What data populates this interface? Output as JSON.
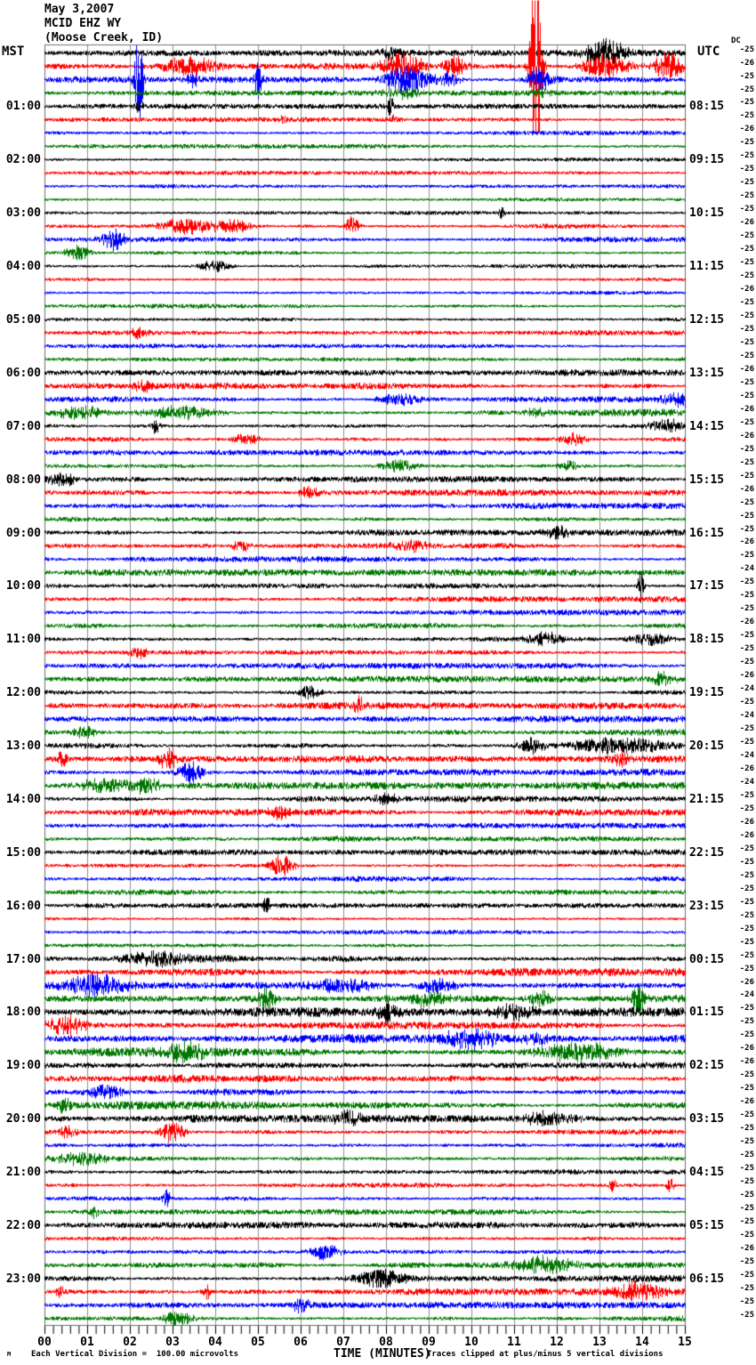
{
  "header": {
    "date": "May 3,2007",
    "station": "MCID EHZ WY",
    "location": "(Moose Creek, ID)"
  },
  "axes": {
    "left_label": "MST",
    "right_label": "UTC",
    "dc_label": "DC",
    "x_axis_title": "TIME (MINUTES)",
    "left_hours": [
      "01:00",
      "02:00",
      "03:00",
      "04:00",
      "05:00",
      "06:00",
      "07:00",
      "08:00",
      "09:00",
      "10:00",
      "11:00",
      "12:00",
      "13:00",
      "14:00",
      "15:00",
      "16:00",
      "17:00",
      "18:00",
      "19:00",
      "20:00",
      "21:00",
      "22:00",
      "23:00"
    ],
    "right_hours": [
      "08:15",
      "09:15",
      "10:15",
      "11:15",
      "12:15",
      "13:15",
      "14:15",
      "15:15",
      "16:15",
      "17:15",
      "18:15",
      "19:15",
      "20:15",
      "21:15",
      "22:15",
      "23:15",
      "00:15",
      "01:15",
      "02:15",
      "03:15",
      "04:15",
      "05:15",
      "06:15"
    ],
    "x_tick_labels": [
      "00",
      "01",
      "02",
      "03",
      "04",
      "05",
      "06",
      "07",
      "08",
      "09",
      "10",
      "11",
      "12",
      "13",
      "14",
      "15"
    ]
  },
  "footer": {
    "left": "Each Vertical Division =  100.00 microvolts",
    "right": "Traces clipped at plus/minus 5 vertical divisions",
    "watermark": "M"
  },
  "colors": {
    "trace_black": "#000000",
    "trace_red": "#ff0000",
    "trace_blue": "#0000ff",
    "trace_green": "#007700",
    "grid": "#909090",
    "border": "#707070",
    "background": "#ffffff",
    "text": "#000000"
  },
  "chart_data": {
    "type": "line",
    "subtype": "helicorder-seismogram",
    "title": "MCID EHZ WY (Moose Creek, ID) May 3,2007",
    "xlabel": "TIME (MINUTES)",
    "xlim": [
      0,
      15
    ],
    "rows": 96,
    "minutes_per_row": 15,
    "start_time_mst": "00:00",
    "start_time_utc": "07:15",
    "color_cycle": [
      "#000000",
      "#ff0000",
      "#0000ff",
      "#007700"
    ],
    "grid": true,
    "microvolts_per_division": 100,
    "clip_divisions": 5,
    "dc_offsets": [
      -25,
      -26,
      -25,
      -25,
      -25,
      -25,
      -26,
      -25,
      -25,
      -25,
      -25,
      -25,
      -25,
      -26,
      -25,
      -25,
      -25,
      -25,
      -26,
      -25,
      -25,
      -25,
      -25,
      -25,
      -26,
      -25,
      -25,
      -26,
      -25,
      -26,
      -25,
      -25,
      -25,
      -26,
      -25,
      -25,
      -25,
      -26,
      -25,
      -24,
      -25,
      -25,
      -25,
      -26,
      -25,
      -25,
      -25,
      -26,
      -24,
      -25,
      -24,
      -25,
      -25,
      -24,
      -26,
      -24,
      -25,
      -25,
      -26,
      -26,
      -25,
      -25,
      -25,
      -25,
      -25,
      -25,
      -25,
      -25,
      -25,
      -25,
      -26,
      -24,
      -25,
      -25,
      -25,
      -26,
      -26,
      -25,
      -25,
      -26,
      -25,
      -25,
      -25,
      -25,
      -25,
      -25,
      -25,
      -25,
      -25,
      -25,
      -26,
      -25,
      -25,
      -25,
      -25,
      -25
    ],
    "noise_amp": [
      2.2,
      3.2,
      2.8,
      1.8,
      1.8,
      1.8,
      1.6,
      1.6,
      1.4,
      1.5,
      1.4,
      1.5,
      1.6,
      2.0,
      1.9,
      1.8,
      1.8,
      1.7,
      1.7,
      1.7,
      1.9,
      1.9,
      1.8,
      1.9,
      2.4,
      2.4,
      2.4,
      2.6,
      2.3,
      2.4,
      2.2,
      2.4,
      2.3,
      2.3,
      2.2,
      2.2,
      2.3,
      2.2,
      2.2,
      2.3,
      2.3,
      2.2,
      2.2,
      2.2,
      2.4,
      2.3,
      2.2,
      2.3,
      2.5,
      2.5,
      2.4,
      2.5,
      2.7,
      2.7,
      2.5,
      2.6,
      2.3,
      2.3,
      2.2,
      2.2,
      2.0,
      2.1,
      2.0,
      2.0,
      1.7,
      1.7,
      1.7,
      1.8,
      3.0,
      2.8,
      3.4,
      3.4,
      3.3,
      3.2,
      3.2,
      3.3,
      3.0,
      3.0,
      2.9,
      2.9,
      2.6,
      2.6,
      2.5,
      2.6,
      1.9,
      2.0,
      1.9,
      2.0,
      2.3,
      2.3,
      2.3,
      2.3,
      2.5,
      2.4,
      2.3,
      2.3
    ],
    "events": [
      [
        0,
        13.1,
        13,
        0.35
      ],
      [
        0,
        8.1,
        5,
        0.2
      ],
      [
        1,
        3.4,
        9,
        0.5
      ],
      [
        1,
        8.4,
        13,
        0.35
      ],
      [
        1,
        9.6,
        11,
        0.2
      ],
      [
        1,
        11.5,
        110,
        0.09
      ],
      [
        1,
        13.1,
        11,
        0.4
      ],
      [
        1,
        14.6,
        13,
        0.25
      ],
      [
        2,
        2.2,
        45,
        0.07
      ],
      [
        2,
        3.45,
        8,
        0.1
      ],
      [
        2,
        5.0,
        17,
        0.06
      ],
      [
        2,
        8.5,
        13,
        0.4
      ],
      [
        2,
        9.5,
        7,
        0.15
      ],
      [
        2,
        11.6,
        11,
        0.2
      ],
      [
        3,
        8.4,
        5,
        0.3
      ],
      [
        3,
        11.6,
        4,
        0.15
      ],
      [
        4,
        8.1,
        10,
        0.05
      ],
      [
        4,
        2.2,
        4,
        0.1
      ],
      [
        5,
        5.6,
        5,
        0.06
      ],
      [
        5,
        8.2,
        4,
        0.08
      ],
      [
        12,
        10.7,
        5,
        0.06
      ],
      [
        13,
        3.3,
        8,
        0.45
      ],
      [
        13,
        4.4,
        7,
        0.3
      ],
      [
        13,
        7.2,
        9,
        0.12
      ],
      [
        14,
        1.6,
        11,
        0.2
      ],
      [
        15,
        0.75,
        7,
        0.2
      ],
      [
        16,
        4.0,
        5,
        0.3
      ],
      [
        21,
        2.2,
        5,
        0.15
      ],
      [
        25,
        2.3,
        6,
        0.15
      ],
      [
        26,
        8.3,
        6,
        0.35
      ],
      [
        26,
        14.9,
        6,
        0.3
      ],
      [
        27,
        0.8,
        6,
        0.4
      ],
      [
        27,
        3.2,
        6,
        0.6
      ],
      [
        27,
        11.5,
        5,
        0.15
      ],
      [
        28,
        2.6,
        7,
        0.07
      ],
      [
        28,
        14.6,
        6,
        0.3
      ],
      [
        29,
        4.7,
        6,
        0.2
      ],
      [
        29,
        12.4,
        6,
        0.2
      ],
      [
        31,
        8.3,
        6,
        0.3
      ],
      [
        31,
        12.3,
        5,
        0.15
      ],
      [
        32,
        0.4,
        6,
        0.3
      ],
      [
        33,
        6.2,
        6,
        0.15
      ],
      [
        36,
        12.0,
        5,
        0.2
      ],
      [
        37,
        4.6,
        6,
        0.15
      ],
      [
        37,
        8.6,
        5,
        0.3
      ],
      [
        40,
        13.96,
        16,
        0.05
      ],
      [
        44,
        11.7,
        6,
        0.3
      ],
      [
        44,
        14.2,
        6,
        0.35
      ],
      [
        45,
        2.2,
        6,
        0.15
      ],
      [
        47,
        14.5,
        6,
        0.2
      ],
      [
        48,
        6.2,
        6,
        0.2
      ],
      [
        49,
        7.35,
        10,
        0.08
      ],
      [
        51,
        0.9,
        6,
        0.2
      ],
      [
        52,
        11.4,
        8,
        0.2
      ],
      [
        52,
        13.5,
        8,
        0.9
      ],
      [
        53,
        0.4,
        8,
        0.08
      ],
      [
        53,
        2.9,
        10,
        0.15
      ],
      [
        53,
        13.5,
        7,
        0.15
      ],
      [
        54,
        3.4,
        11,
        0.2
      ],
      [
        55,
        1.5,
        7,
        0.5
      ],
      [
        55,
        2.4,
        7,
        0.2
      ],
      [
        56,
        8.0,
        6,
        0.2
      ],
      [
        57,
        5.5,
        6,
        0.2
      ],
      [
        61,
        5.55,
        10,
        0.2
      ],
      [
        64,
        5.2,
        8,
        0.08
      ],
      [
        68,
        2.5,
        6,
        0.5
      ],
      [
        70,
        1.2,
        10,
        0.5
      ],
      [
        70,
        7.0,
        7,
        0.5
      ],
      [
        70,
        9.2,
        7,
        0.3
      ],
      [
        71,
        5.2,
        12,
        0.15
      ],
      [
        71,
        9.0,
        8,
        0.3
      ],
      [
        71,
        11.6,
        8,
        0.2
      ],
      [
        71,
        13.9,
        12,
        0.12
      ],
      [
        72,
        8.0,
        8,
        0.15
      ],
      [
        72,
        11.0,
        6,
        0.3
      ],
      [
        73,
        0.5,
        9,
        0.3
      ],
      [
        74,
        10.0,
        9,
        0.4
      ],
      [
        74,
        11.5,
        6,
        0.2
      ],
      [
        75,
        3.3,
        10,
        0.3
      ],
      [
        75,
        12.5,
        9,
        0.7
      ],
      [
        78,
        1.4,
        7,
        0.25
      ],
      [
        79,
        0.45,
        7,
        0.1
      ],
      [
        80,
        7.1,
        7,
        0.2
      ],
      [
        80,
        11.8,
        6,
        0.5
      ],
      [
        81,
        0.5,
        6,
        0.15
      ],
      [
        81,
        3.0,
        10,
        0.2
      ],
      [
        83,
        0.9,
        6,
        0.45
      ],
      [
        85,
        13.3,
        7,
        0.07
      ],
      [
        85,
        14.65,
        7,
        0.07
      ],
      [
        86,
        2.85,
        8,
        0.07
      ],
      [
        87,
        1.15,
        7,
        0.07
      ],
      [
        90,
        6.55,
        8,
        0.25
      ],
      [
        91,
        11.7,
        7,
        0.5
      ],
      [
        92,
        7.9,
        9,
        0.45
      ],
      [
        93,
        0.35,
        7,
        0.06
      ],
      [
        93,
        3.8,
        7,
        0.06
      ],
      [
        93,
        13.9,
        8,
        0.4
      ],
      [
        94,
        6.0,
        7,
        0.15
      ],
      [
        95,
        3.1,
        7,
        0.25
      ]
    ]
  }
}
